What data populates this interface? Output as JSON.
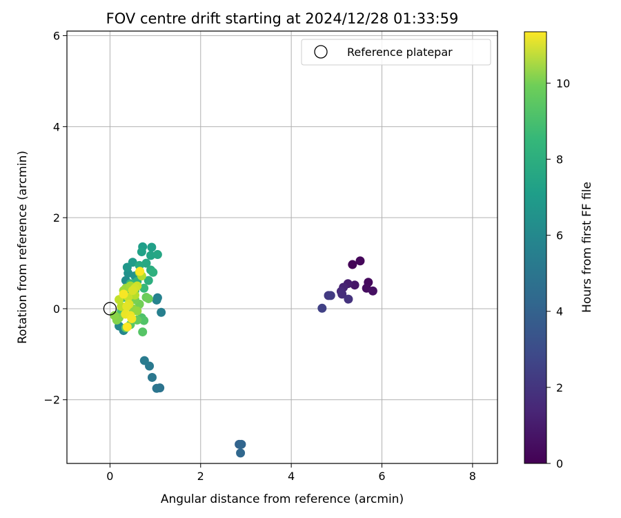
{
  "chart_data": {
    "type": "scatter",
    "title": "FOV centre drift starting at 2024/12/28 01:33:59",
    "xlabel": "Angular distance from reference (arcmin)",
    "ylabel": "Rotation from reference (arcmin)",
    "xlim": [
      -0.95,
      8.55
    ],
    "ylim": [
      -3.4,
      6.1
    ],
    "xticks": [
      0,
      2,
      4,
      6,
      8
    ],
    "yticks": [
      -2,
      0,
      2,
      4,
      6
    ],
    "grid": true,
    "legend": {
      "position": "top-right",
      "entries": [
        "Reference platepar"
      ]
    },
    "reference_point": {
      "x": 0,
      "y": 0
    },
    "colorbar": {
      "label": "Hours from first FF file",
      "min": 0,
      "max": 11.35,
      "ticks": [
        0,
        2,
        4,
        6,
        8,
        10
      ],
      "colormap": "viridis"
    },
    "points": [
      {
        "x": 5.35,
        "y": 0.97,
        "t": 0.1
      },
      {
        "x": 5.52,
        "y": 1.05,
        "t": 0.2
      },
      {
        "x": 5.7,
        "y": 0.58,
        "t": 0.3
      },
      {
        "x": 5.66,
        "y": 0.45,
        "t": 0.4
      },
      {
        "x": 5.8,
        "y": 0.39,
        "t": 0.5
      },
      {
        "x": 5.4,
        "y": 0.52,
        "t": 0.7
      },
      {
        "x": 5.25,
        "y": 0.55,
        "t": 0.9
      },
      {
        "x": 5.15,
        "y": 0.47,
        "t": 1.1
      },
      {
        "x": 5.1,
        "y": 0.38,
        "t": 1.3
      },
      {
        "x": 5.12,
        "y": 0.32,
        "t": 1.5
      },
      {
        "x": 5.26,
        "y": 0.21,
        "t": 1.7
      },
      {
        "x": 4.82,
        "y": 0.29,
        "t": 1.9
      },
      {
        "x": 4.87,
        "y": 0.29,
        "t": 2.0
      },
      {
        "x": 4.68,
        "y": 0.01,
        "t": 2.2
      },
      {
        "x": 2.85,
        "y": -2.98,
        "t": 3.6
      },
      {
        "x": 2.9,
        "y": -2.98,
        "t": 3.7
      },
      {
        "x": 2.88,
        "y": -3.17,
        "t": 3.8
      },
      {
        "x": 1.1,
        "y": -1.74,
        "t": 4.3
      },
      {
        "x": 1.03,
        "y": -1.75,
        "t": 4.4
      },
      {
        "x": 0.93,
        "y": -1.51,
        "t": 4.5
      },
      {
        "x": 0.87,
        "y": -1.26,
        "t": 4.6
      },
      {
        "x": 0.76,
        "y": -1.14,
        "t": 4.7
      },
      {
        "x": 1.13,
        "y": -0.08,
        "t": 4.9
      },
      {
        "x": 1.05,
        "y": 0.24,
        "t": 5.0
      },
      {
        "x": 1.03,
        "y": 0.19,
        "t": 5.1
      },
      {
        "x": 0.3,
        "y": -0.48,
        "t": 5.2
      },
      {
        "x": 0.2,
        "y": -0.38,
        "t": 5.3
      },
      {
        "x": 0.35,
        "y": 0.62,
        "t": 5.5
      },
      {
        "x": 0.4,
        "y": 0.78,
        "t": 5.7
      },
      {
        "x": 0.55,
        "y": 0.72,
        "t": 5.8
      },
      {
        "x": 0.38,
        "y": 0.91,
        "t": 6.0
      },
      {
        "x": 0.5,
        "y": 1.02,
        "t": 6.2
      },
      {
        "x": 0.72,
        "y": 1.36,
        "t": 6.3
      },
      {
        "x": 0.92,
        "y": 1.35,
        "t": 6.4
      },
      {
        "x": 0.7,
        "y": 1.25,
        "t": 6.5
      },
      {
        "x": 0.9,
        "y": 1.17,
        "t": 6.6
      },
      {
        "x": 1.05,
        "y": 1.19,
        "t": 6.7
      },
      {
        "x": 0.8,
        "y": 1.0,
        "t": 6.8
      },
      {
        "x": 0.65,
        "y": 0.95,
        "t": 6.9
      },
      {
        "x": 0.9,
        "y": 0.85,
        "t": 7.0
      },
      {
        "x": 0.85,
        "y": 0.62,
        "t": 7.1
      },
      {
        "x": 0.95,
        "y": 0.8,
        "t": 7.2
      },
      {
        "x": 0.6,
        "y": 0.6,
        "t": 7.3
      },
      {
        "x": 0.45,
        "y": 0.55,
        "t": 7.5
      },
      {
        "x": 0.75,
        "y": 0.45,
        "t": 7.6
      },
      {
        "x": 0.55,
        "y": 0.4,
        "t": 7.7
      },
      {
        "x": 0.4,
        "y": 0.3,
        "t": 7.8
      },
      {
        "x": 0.3,
        "y": 0.25,
        "t": 7.9
      },
      {
        "x": 0.25,
        "y": -0.05,
        "t": 8.0
      },
      {
        "x": 0.7,
        "y": -0.2,
        "t": 8.1
      },
      {
        "x": 0.75,
        "y": -0.26,
        "t": 8.2
      },
      {
        "x": 0.72,
        "y": -0.51,
        "t": 8.3
      },
      {
        "x": 0.45,
        "y": -0.35,
        "t": 8.4
      },
      {
        "x": 0.35,
        "y": -0.42,
        "t": 8.5
      },
      {
        "x": 0.6,
        "y": -0.25,
        "t": 8.6
      },
      {
        "x": 0.8,
        "y": 0.25,
        "t": 8.7
      },
      {
        "x": 0.85,
        "y": 0.22,
        "t": 8.8
      },
      {
        "x": 0.65,
        "y": 0.1,
        "t": 8.9
      },
      {
        "x": 0.55,
        "y": 0.2,
        "t": 9.0
      },
      {
        "x": 0.2,
        "y": -0.2,
        "t": 9.1
      },
      {
        "x": 0.15,
        "y": -0.25,
        "t": 9.2
      },
      {
        "x": 0.1,
        "y": -0.15,
        "t": 9.3
      },
      {
        "x": 0.5,
        "y": 0.0,
        "t": 9.4
      },
      {
        "x": 0.6,
        "y": -0.05,
        "t": 9.5
      },
      {
        "x": 0.35,
        "y": 0.45,
        "t": 9.6
      },
      {
        "x": 0.3,
        "y": 0.4,
        "t": 9.7
      },
      {
        "x": 0.45,
        "y": 0.5,
        "t": 9.8
      },
      {
        "x": 0.65,
        "y": 0.8,
        "t": 9.9
      },
      {
        "x": 0.7,
        "y": 0.72,
        "t": 10.0
      },
      {
        "x": 0.55,
        "y": 0.3,
        "t": 10.1
      },
      {
        "x": 0.25,
        "y": 0.05,
        "t": 10.2
      },
      {
        "x": 0.2,
        "y": 0.2,
        "t": 10.3
      },
      {
        "x": 0.4,
        "y": 0.25,
        "t": 10.4
      },
      {
        "x": 0.6,
        "y": 0.5,
        "t": 10.5
      },
      {
        "x": 0.55,
        "y": 0.45,
        "t": 10.6
      },
      {
        "x": 0.5,
        "y": 0.4,
        "t": 10.7
      },
      {
        "x": 0.42,
        "y": 0.1,
        "t": 10.8
      },
      {
        "x": 0.37,
        "y": 0.05,
        "t": 10.9
      },
      {
        "x": 0.34,
        "y": -0.12,
        "t": 11.0
      },
      {
        "x": 0.45,
        "y": -0.15,
        "t": 11.1
      },
      {
        "x": 0.48,
        "y": -0.22,
        "t": 11.2
      },
      {
        "x": 0.3,
        "y": 0.32,
        "t": 11.25
      },
      {
        "x": 0.66,
        "y": 0.82,
        "t": 11.3
      },
      {
        "x": 0.38,
        "y": -0.4,
        "t": 11.35
      }
    ]
  }
}
